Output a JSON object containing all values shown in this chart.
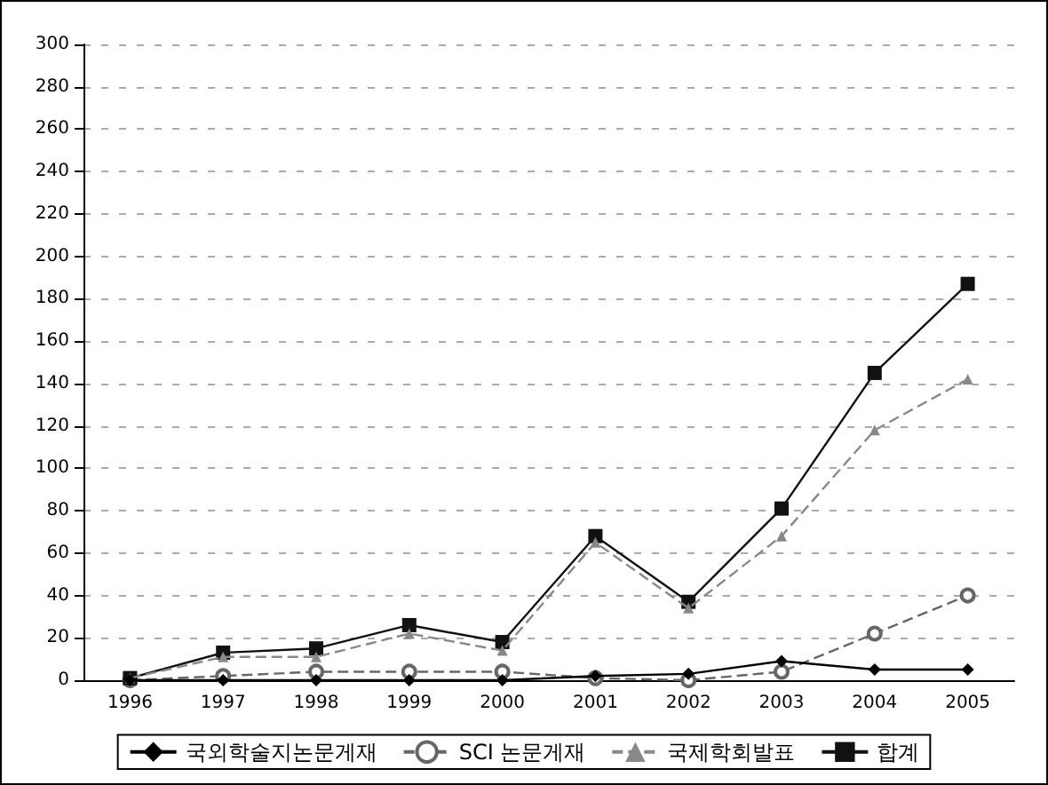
{
  "chart_data": {
    "type": "line",
    "categories": [
      "1996",
      "1997",
      "1998",
      "1999",
      "2000",
      "2001",
      "2002",
      "2003",
      "2004",
      "2005"
    ],
    "series": [
      {
        "name": "국외학술지논문게재",
        "color": "#000000",
        "marker": "diamond",
        "line_style": "solid",
        "values": [
          0,
          0,
          0,
          0,
          0,
          2,
          3,
          9,
          5,
          5
        ]
      },
      {
        "name": "SCI 논문게재",
        "color": "#666666",
        "marker": "circle",
        "line_style": "dashed",
        "values": [
          0,
          2,
          4,
          4,
          4,
          1,
          0,
          4,
          22,
          40
        ]
      },
      {
        "name": "국제학회발표",
        "color": "#888888",
        "marker": "triangle",
        "line_style": "dashed",
        "values": [
          1,
          11,
          11,
          22,
          14,
          65,
          34,
          68,
          118,
          142
        ]
      },
      {
        "name": "합계",
        "color": "#111111",
        "marker": "square",
        "line_style": "solid",
        "values": [
          1,
          13,
          15,
          26,
          18,
          68,
          37,
          81,
          145,
          187
        ]
      }
    ],
    "ylim": [
      0,
      300
    ],
    "yticks": [
      0,
      20,
      40,
      60,
      80,
      100,
      120,
      140,
      160,
      180,
      200,
      220,
      240,
      260,
      280,
      300
    ],
    "grid": "y",
    "legend": "bottom"
  }
}
